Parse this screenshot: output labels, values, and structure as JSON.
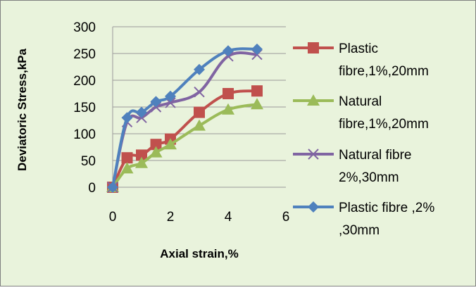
{
  "colors": {
    "background": "#e9f3dc",
    "border": "#7f7f7f",
    "gridline": "#9a9a9a",
    "plastic_1": "#c0504d",
    "natural_1": "#9bbb59",
    "natural_2": "#8064a2",
    "plastic_2": "#4f81bd"
  },
  "chart_data": {
    "type": "line",
    "title": "",
    "xlabel": "Axial strain,%",
    "ylabel": "Deviatoric Stress,kPa",
    "xlim": [
      0,
      6
    ],
    "ylim": [
      0,
      300
    ],
    "x_ticks": [
      0,
      2,
      4,
      6
    ],
    "y_ticks": [
      0,
      50,
      100,
      150,
      200,
      250,
      300
    ],
    "grid": {
      "horizontal": true,
      "vertical": false
    },
    "legend_position": "right",
    "series": [
      {
        "name": "Plastic fibre,1%,20mm",
        "legend_lines": [
          "Plastic",
          "fibre,1%,20mm"
        ],
        "marker": "square",
        "color_key": "plastic_1",
        "x": [
          0,
          0.5,
          1,
          1.5,
          2,
          3,
          4,
          5
        ],
        "y": [
          0,
          55,
          60,
          80,
          90,
          140,
          175,
          180
        ]
      },
      {
        "name": "Natural fibre,1%,20mm",
        "legend_lines": [
          "Natural",
          "fibre,1%,20mm"
        ],
        "marker": "triangle",
        "color_key": "natural_1",
        "x": [
          0,
          0.5,
          1,
          1.5,
          2,
          3,
          4,
          5
        ],
        "y": [
          0,
          35,
          45,
          65,
          80,
          115,
          145,
          155
        ]
      },
      {
        "name": "Natural fibre 2%,30mm",
        "legend_lines": [
          "Natural fibre",
          "2%,30mm"
        ],
        "marker": "x",
        "color_key": "natural_2",
        "x": [
          0,
          0.5,
          1,
          1.5,
          2,
          3,
          4,
          5
        ],
        "y": [
          0,
          122,
          130,
          150,
          158,
          178,
          245,
          248
        ]
      },
      {
        "name": "Plastic fibre ,2% ,30mm",
        "legend_lines": [
          "Plastic fibre ,2%",
          ",30mm"
        ],
        "marker": "diamond",
        "color_key": "plastic_2",
        "x": [
          0,
          0.5,
          1,
          1.5,
          2,
          3,
          4,
          5
        ],
        "y": [
          0,
          130,
          140,
          160,
          170,
          220,
          255,
          258
        ]
      }
    ]
  }
}
